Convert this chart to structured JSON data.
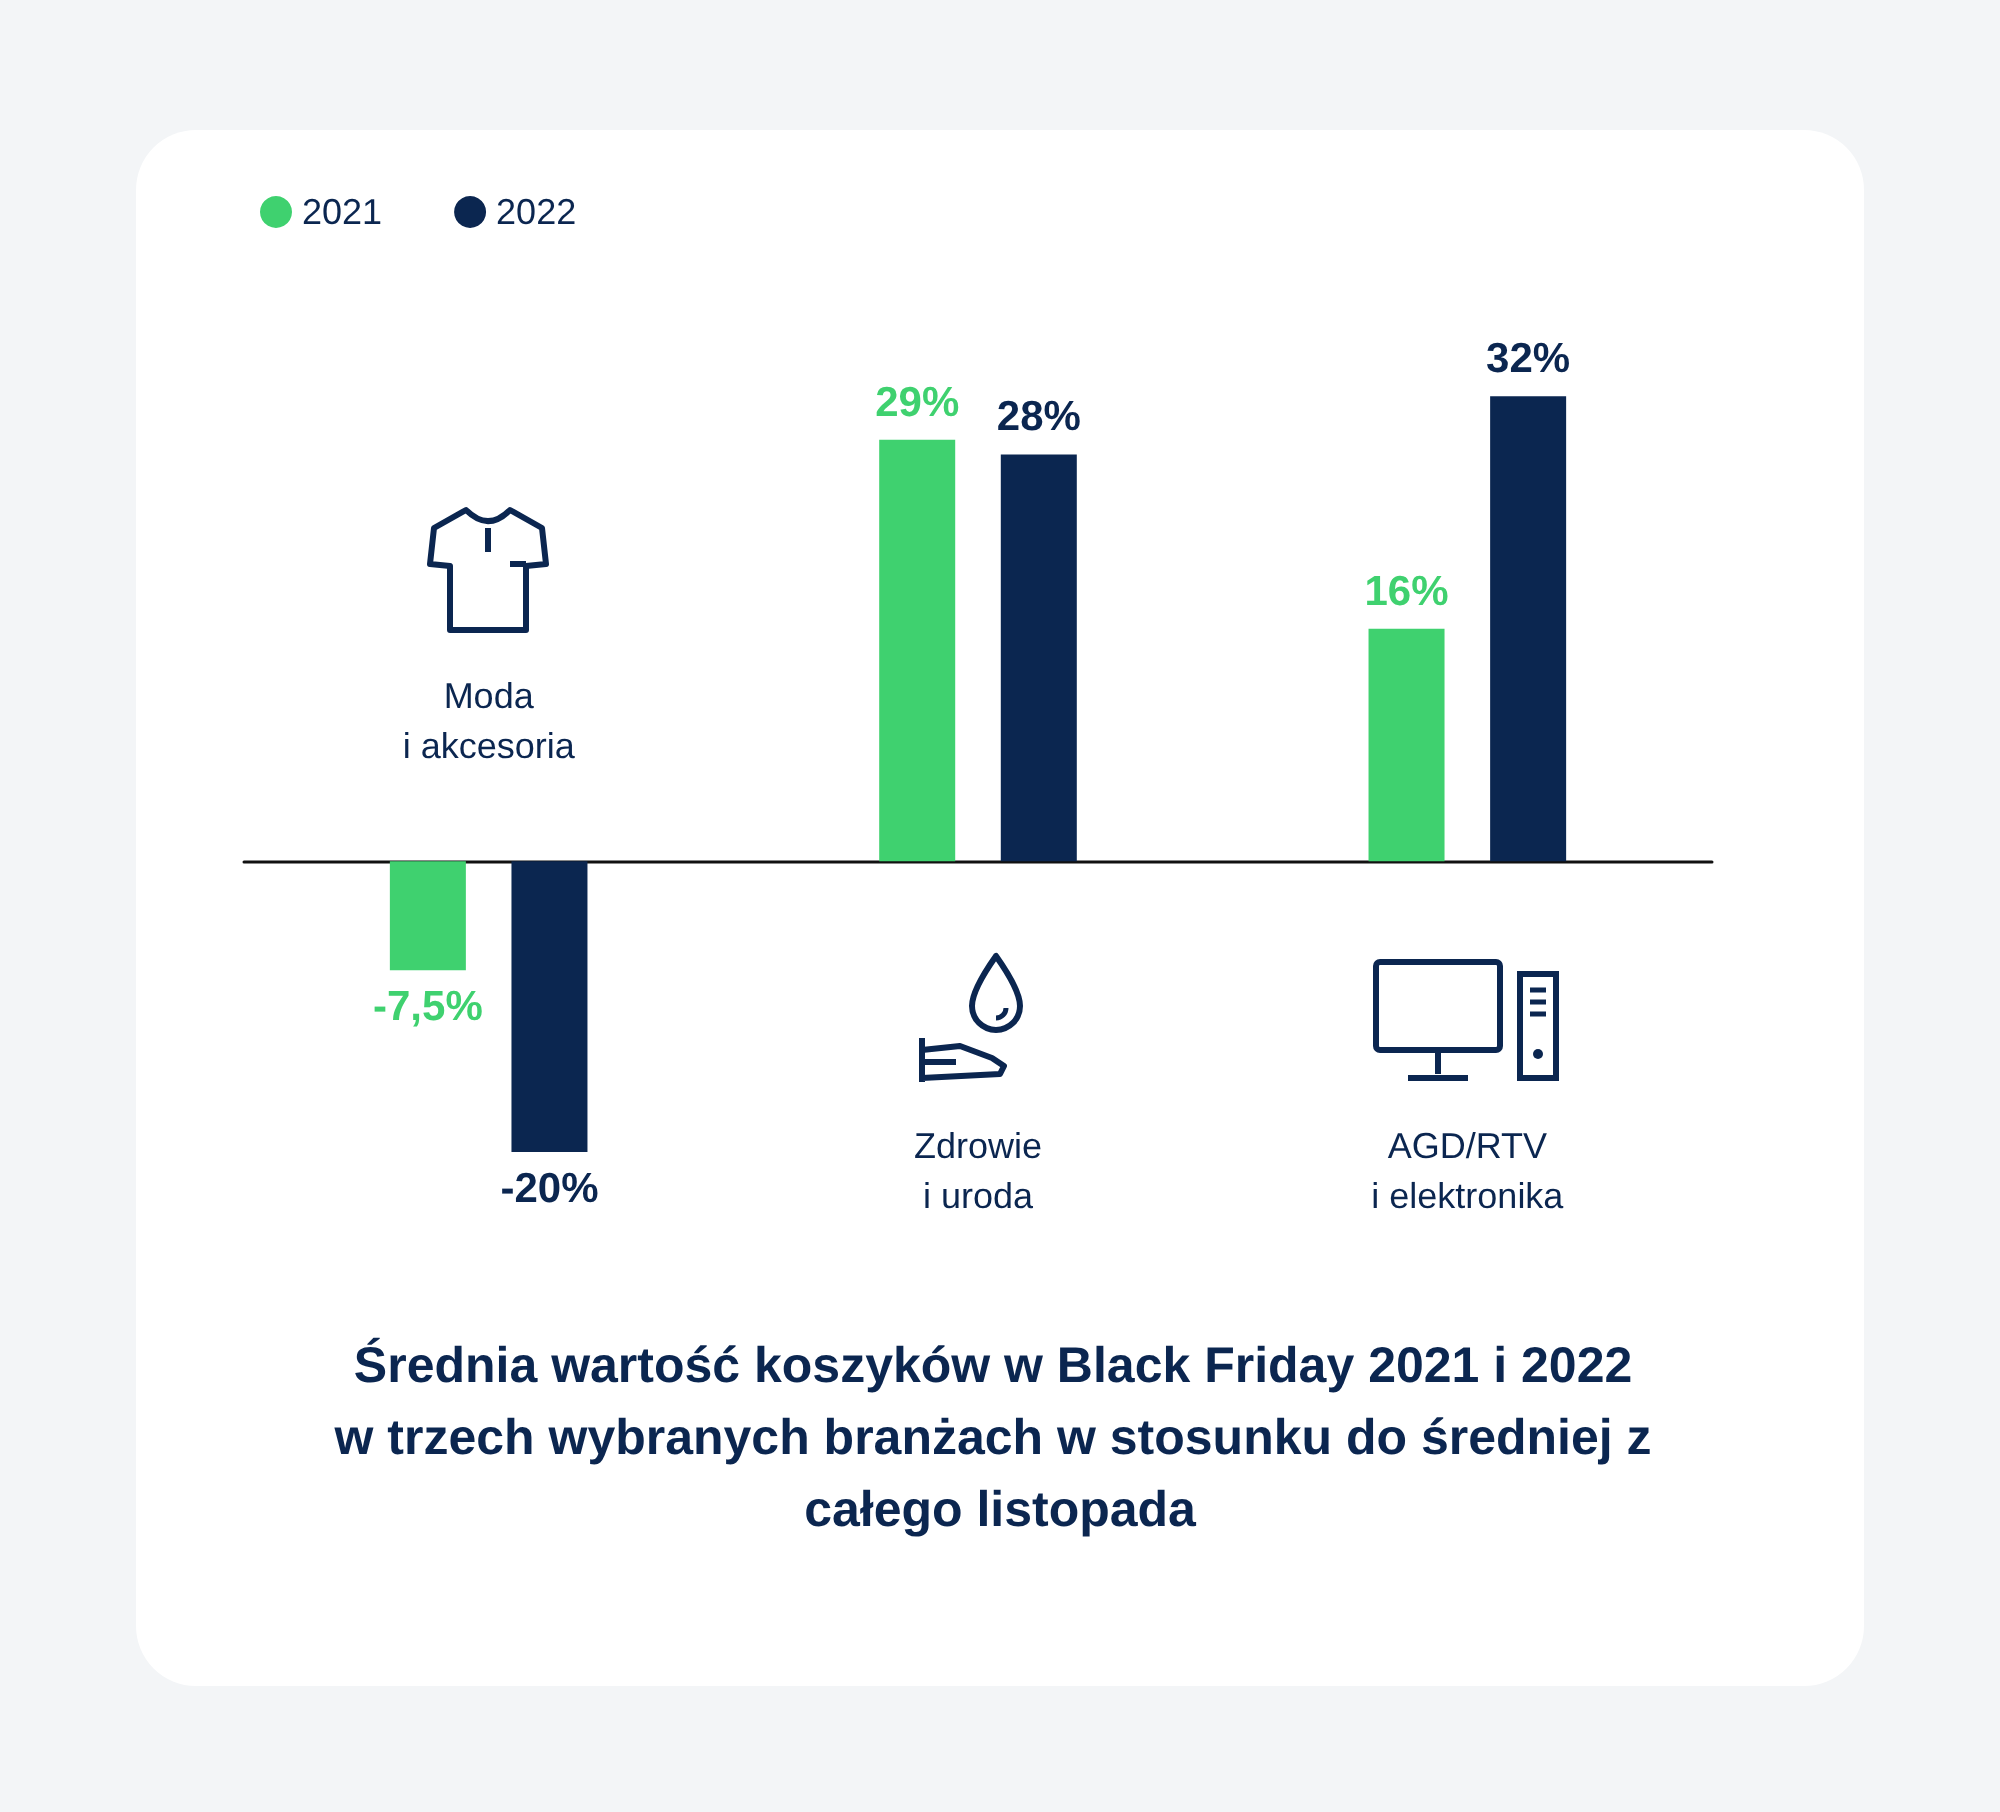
{
  "chart_data": {
    "type": "bar",
    "title": "Średnia wartość koszyków w Black Friday 2021 i 2022 w trzech wybranych branżach w stosunku do średniej z całego listopada",
    "categories": [
      "Moda\ni akcesoria",
      "Zdrowie\ni uroda",
      "AGD/RTV\ni elektronika"
    ],
    "series": [
      {
        "name": "2021",
        "color": "#3fd16f",
        "values": [
          -7.5,
          29,
          16
        ],
        "value_labels": [
          "-7,5%",
          "29%",
          "16%"
        ]
      },
      {
        "name": "2022",
        "color": "#0b2650",
        "values": [
          -20,
          28,
          32
        ],
        "value_labels": [
          "-20%",
          "28%",
          "32%"
        ]
      }
    ],
    "legend": "top left",
    "grid": false
  }
}
